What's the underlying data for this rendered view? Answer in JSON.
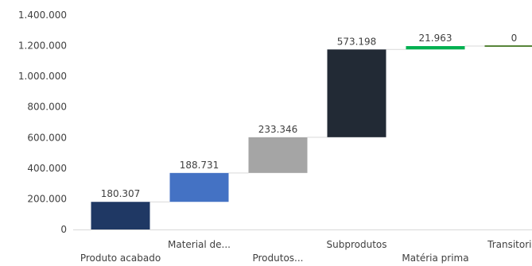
{
  "chart_data": {
    "type": "bar",
    "subtype": "waterfall",
    "title": "",
    "xlabel": "",
    "ylabel": "",
    "ylim": [
      0,
      1400000
    ],
    "ytick_values": [
      0,
      200000,
      400000,
      600000,
      800000,
      1000000,
      1200000,
      1400000
    ],
    "ytick_labels": [
      "0",
      "200.000",
      "400.000",
      "600.000",
      "800.000",
      "1.000.000",
      "1.200.000",
      "1.400.000"
    ],
    "grid": false,
    "categories": [
      "Produto acabado",
      "Material de...",
      "Produtos...",
      "Subprodutos",
      "Matéria prima",
      "Transitoria"
    ],
    "values": [
      180307,
      188731,
      233346,
      573198,
      21963,
      0
    ],
    "value_labels": [
      "180.307",
      "188.731",
      "233.346",
      "573.198",
      "21.963",
      "0"
    ],
    "colors": [
      "#1f3864",
      "#4472c4",
      "#a5a5a5",
      "#222a35",
      "#00b050",
      "#548235"
    ],
    "connector_color": "#d9d9d9"
  }
}
